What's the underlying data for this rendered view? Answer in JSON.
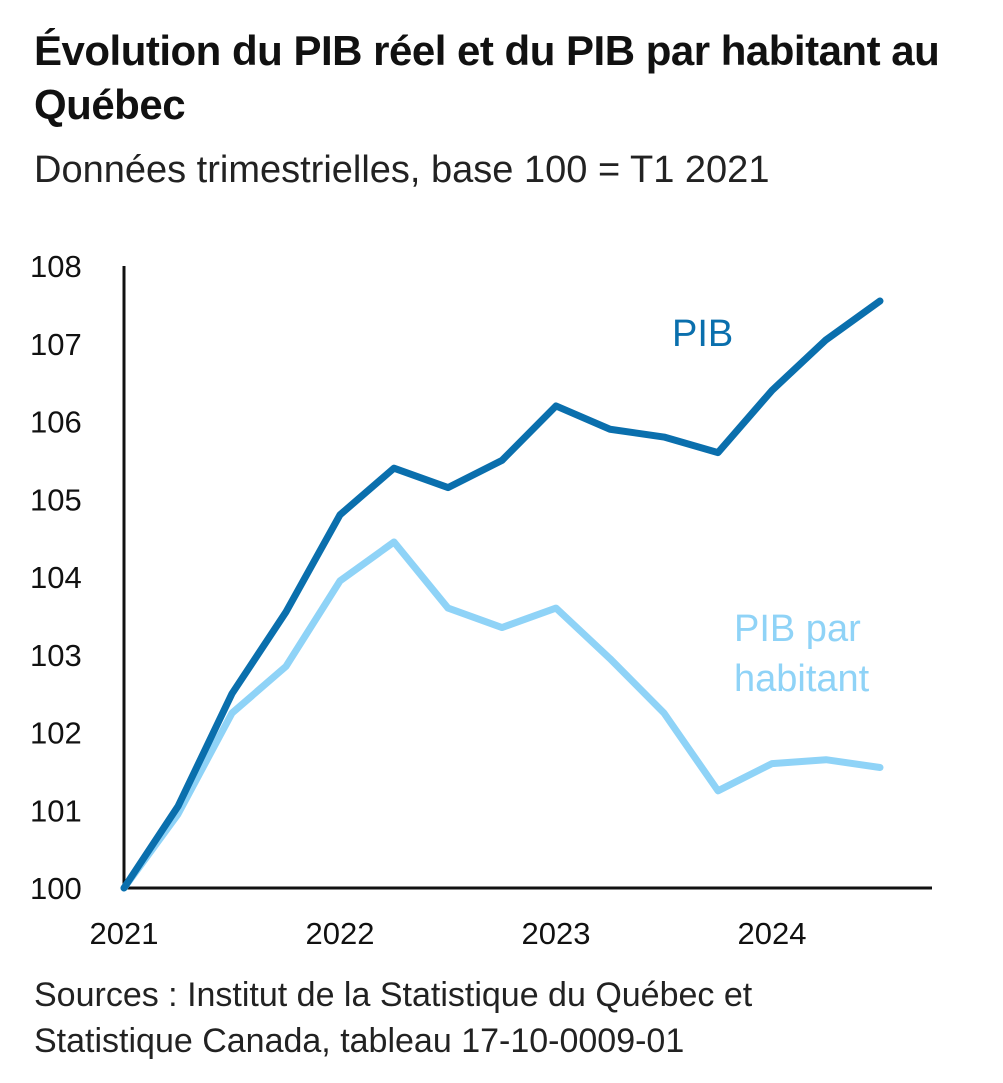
{
  "header": {
    "title": "Évolution du PIB réel et du PIB par habitant au Québec",
    "subtitle": "Données trimestrielles, base 100 = T1 2021"
  },
  "footer": {
    "source_line1": "Sources : Institut de la Statistique du Québec et",
    "source_line2": "Statistique Canada, tableau 17-10-0009-01"
  },
  "colors": {
    "pib": "#0a6fad",
    "pib_par_habitant": "#8fd3f7",
    "axis": "#111111"
  },
  "chart_data": {
    "type": "line",
    "title": "Évolution du PIB réel et du PIB par habitant au Québec",
    "subtitle": "Données trimestrielles, base 100 = T1 2021",
    "xlabel": "",
    "ylabel": "",
    "x": [
      "T1 2021",
      "T2 2021",
      "T3 2021",
      "T4 2021",
      "T1 2022",
      "T2 2022",
      "T3 2022",
      "T4 2022",
      "T1 2023",
      "T2 2023",
      "T3 2023",
      "T4 2023",
      "T1 2024",
      "T2 2024",
      "T3 2024"
    ],
    "x_ticks": [
      "2021",
      "2022",
      "2023",
      "2024"
    ],
    "y_ticks": [
      100,
      101,
      102,
      103,
      104,
      105,
      106,
      107,
      108
    ],
    "ylim": [
      100,
      108
    ],
    "grid": false,
    "legend": "direct labels on lines",
    "series": [
      {
        "name": "PIB",
        "label_lines": [
          "PIB"
        ],
        "values": [
          100.0,
          101.05,
          102.5,
          103.55,
          104.8,
          105.4,
          105.15,
          105.5,
          106.2,
          105.9,
          105.8,
          105.6,
          106.4,
          107.05,
          107.55
        ]
      },
      {
        "name": "PIB par habitant",
        "label_lines": [
          "PIB par",
          "habitant"
        ],
        "values": [
          100.0,
          100.95,
          102.25,
          102.85,
          103.95,
          104.45,
          103.6,
          103.35,
          103.6,
          102.95,
          102.25,
          101.25,
          101.6,
          101.65,
          101.55
        ]
      }
    ]
  }
}
